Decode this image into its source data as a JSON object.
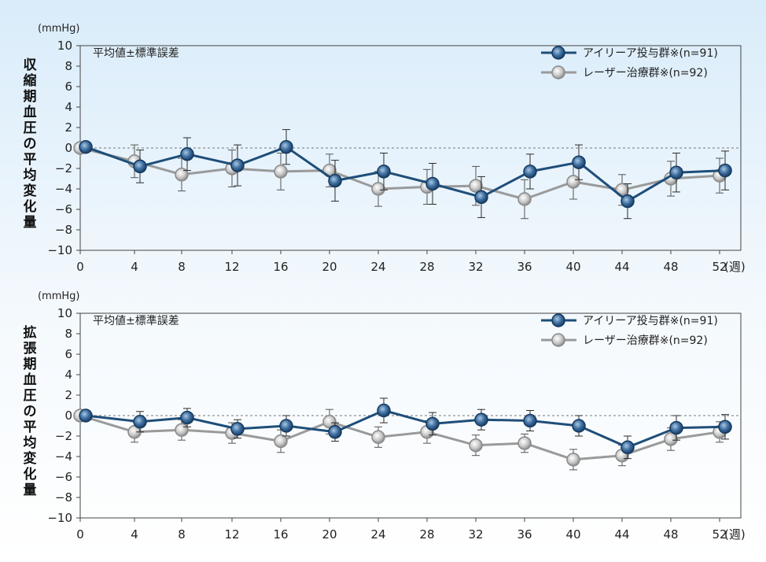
{
  "chart_data": [
    {
      "type": "line",
      "unit": "(mmHg)",
      "ylabel": "収縮期血圧の平均変化量",
      "note": "平均値±標準誤差",
      "xlabel_suffix": "(週)",
      "x": [
        0,
        4,
        8,
        12,
        16,
        20,
        24,
        28,
        32,
        36,
        40,
        44,
        48,
        52
      ],
      "ylim": [
        -10,
        10
      ],
      "yticks": [
        10,
        8,
        6,
        4,
        2,
        0,
        -2,
        -4,
        -6,
        -8,
        -10
      ],
      "baseline_dashed": 0,
      "series": [
        {
          "name": "アイリーア投与群※(n=91)",
          "color": "#1f4e79",
          "values": [
            0.1,
            -1.8,
            -0.6,
            -1.7,
            0.1,
            -3.2,
            -2.3,
            -3.5,
            -4.8,
            -2.3,
            -1.4,
            -5.2,
            -2.4,
            -2.2
          ],
          "err": [
            0,
            1.6,
            1.6,
            2.0,
            1.7,
            2.0,
            1.8,
            2.0,
            2.0,
            1.7,
            1.7,
            1.7,
            1.9,
            1.9
          ]
        },
        {
          "name": "レーザー治療群※(n=92)",
          "color": "#9a9a9a",
          "values": [
            0,
            -1.3,
            -2.6,
            -2.0,
            -2.3,
            -2.2,
            -4.0,
            -3.8,
            -3.7,
            -5.0,
            -3.3,
            -4.1,
            -3.0,
            -2.7
          ],
          "err": [
            0,
            1.6,
            1.6,
            1.8,
            1.8,
            1.6,
            1.7,
            1.7,
            1.9,
            1.9,
            1.7,
            1.5,
            1.7,
            1.7
          ]
        }
      ]
    },
    {
      "type": "line",
      "unit": "(mmHg)",
      "ylabel": "拡張期血圧の平均変化量",
      "note": "平均値±標準誤差",
      "xlabel_suffix": "(週)",
      "x": [
        0,
        4,
        8,
        12,
        16,
        20,
        24,
        28,
        32,
        36,
        40,
        44,
        48,
        52
      ],
      "ylim": [
        -10,
        10
      ],
      "yticks": [
        10,
        8,
        6,
        4,
        2,
        0,
        -2,
        -4,
        -6,
        -8,
        -10
      ],
      "baseline_dashed": 0,
      "series": [
        {
          "name": "アイリーア投与群※(n=91)",
          "color": "#1f4e79",
          "values": [
            0,
            -0.6,
            -0.2,
            -1.3,
            -1.0,
            -1.6,
            0.5,
            -0.8,
            -0.4,
            -0.5,
            -1.0,
            -3.1,
            -1.2,
            -1.1
          ],
          "err": [
            0,
            1.0,
            0.9,
            0.9,
            1.0,
            0.9,
            1.2,
            1.1,
            1.0,
            1.0,
            1.0,
            1.1,
            1.2,
            1.2
          ]
        },
        {
          "name": "レーザー治療群※(n=92)",
          "color": "#9a9a9a",
          "values": [
            0,
            -1.6,
            -1.4,
            -1.7,
            -2.5,
            -0.6,
            -2.1,
            -1.6,
            -2.9,
            -2.7,
            -4.3,
            -3.9,
            -2.3,
            -1.6
          ],
          "err": [
            0,
            1.0,
            1.0,
            1.0,
            1.1,
            1.2,
            1.0,
            1.1,
            1.0,
            0.9,
            1.0,
            1.0,
            1.1,
            1.0
          ]
        }
      ]
    }
  ]
}
